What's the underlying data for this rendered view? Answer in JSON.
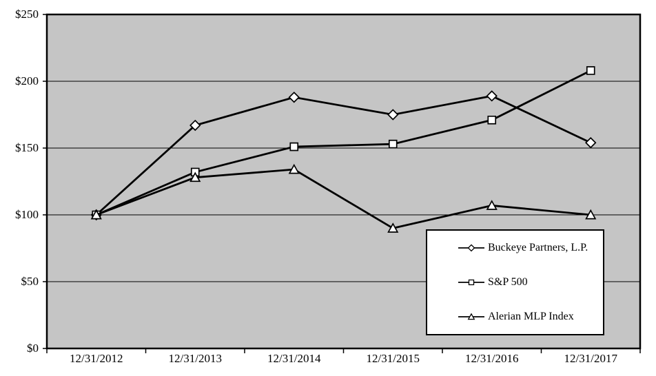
{
  "chart_data": {
    "type": "line",
    "title": "",
    "xlabel": "",
    "ylabel": "",
    "categories": [
      "12/31/2012",
      "12/31/2013",
      "12/31/2014",
      "12/31/2015",
      "12/31/2016",
      "12/31/2017"
    ],
    "series": [
      {
        "name": "Buckeye Partners, L.P.",
        "marker": "diamond",
        "values": [
          100,
          167,
          188,
          175,
          189,
          154
        ]
      },
      {
        "name": "S&P 500",
        "marker": "square",
        "values": [
          100,
          132,
          151,
          153,
          171,
          208
        ]
      },
      {
        "name": "Alerian MLP Index",
        "marker": "triangle",
        "values": [
          100,
          128,
          134,
          90,
          107,
          100
        ]
      }
    ],
    "y_ticks": [
      {
        "label": "$0",
        "value": 0
      },
      {
        "label": "$50",
        "value": 50
      },
      {
        "label": "$100",
        "value": 100
      },
      {
        "label": "$150",
        "value": 150
      },
      {
        "label": "$200",
        "value": 200
      },
      {
        "label": "$250",
        "value": 250
      }
    ],
    "ylim": [
      0,
      250
    ],
    "grid": true,
    "legend_position": "inside-bottom-right",
    "colors": {
      "line": "#000000",
      "marker_fill": "#ffffff",
      "plot_background": "#c5c5c5",
      "page_background": "#ffffff",
      "border": "#000000"
    }
  }
}
